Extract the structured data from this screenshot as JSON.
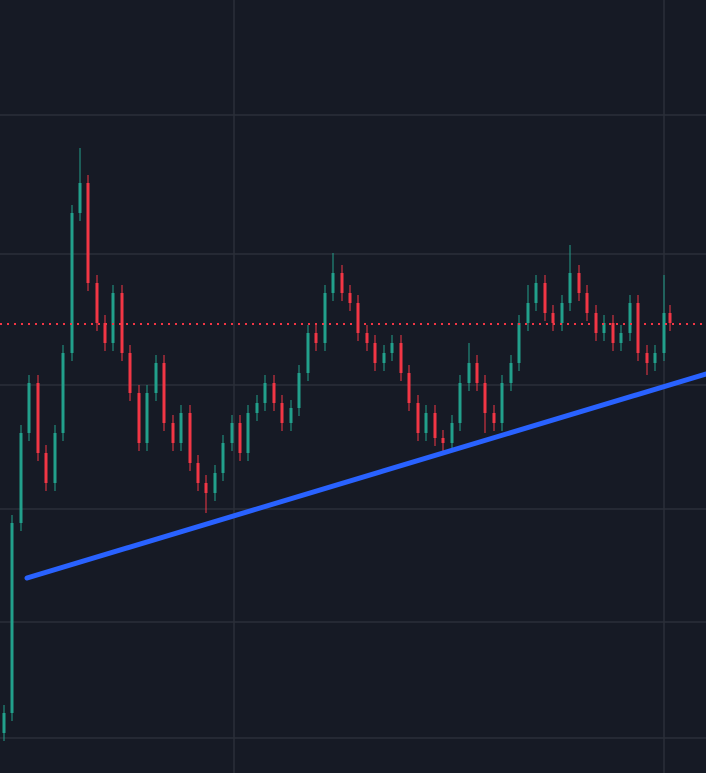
{
  "chart_data": {
    "type": "candlestick",
    "background": "#161a25",
    "grid": true,
    "grid_color": "#2a2e39",
    "up_color": "#22a08c",
    "down_color": "#f23645",
    "xlim": [
      0,
      706
    ],
    "ylim": [
      0,
      773
    ],
    "xticks": [
      234,
      664
    ],
    "yticks": [
      658,
      519,
      388,
      264,
      151,
      35
    ],
    "x": [
      4,
      12,
      21,
      29,
      38,
      46,
      55,
      63,
      72,
      80,
      88,
      97,
      105,
      113,
      122,
      130,
      139,
      147,
      156,
      164,
      173,
      181,
      190,
      198,
      206,
      215,
      223,
      232,
      240,
      248,
      257,
      265,
      274,
      282,
      291,
      299,
      308,
      316,
      325,
      333,
      342,
      350,
      358,
      367,
      375,
      384,
      392,
      401,
      409,
      418,
      426,
      435,
      443,
      452,
      460,
      469,
      477,
      485,
      494,
      502,
      511,
      519,
      528,
      536,
      545,
      553,
      562,
      570,
      579,
      587,
      596,
      604,
      613,
      621,
      630,
      638,
      647,
      655,
      664,
      670
    ],
    "open": [
      40,
      60,
      250,
      340,
      390,
      320,
      290,
      340,
      420,
      560,
      590,
      490,
      450,
      430,
      480,
      420,
      380,
      330,
      380,
      410,
      350,
      330,
      360,
      310,
      290,
      280,
      300,
      330,
      350,
      320,
      360,
      370,
      390,
      370,
      350,
      365,
      400,
      440,
      430,
      480,
      500,
      480,
      470,
      440,
      430,
      410,
      420,
      430,
      400,
      370,
      340,
      360,
      335,
      330,
      350,
      390,
      410,
      390,
      360,
      350,
      390,
      410,
      450,
      470,
      490,
      460,
      450,
      470,
      500,
      480,
      460,
      440,
      450,
      430,
      440,
      470,
      420,
      410,
      420,
      460
    ],
    "high": [
      68,
      258,
      348,
      398,
      398,
      328,
      348,
      428,
      568,
      625,
      598,
      498,
      458,
      488,
      488,
      428,
      388,
      388,
      418,
      418,
      358,
      368,
      368,
      318,
      298,
      308,
      338,
      358,
      358,
      368,
      378,
      398,
      398,
      378,
      373,
      408,
      448,
      448,
      488,
      520,
      508,
      488,
      478,
      448,
      438,
      428,
      438,
      438,
      408,
      378,
      368,
      368,
      343,
      358,
      398,
      430,
      418,
      398,
      368,
      398,
      418,
      458,
      488,
      498,
      498,
      468,
      478,
      528,
      508,
      488,
      468,
      458,
      458,
      448,
      478,
      478,
      428,
      428,
      498,
      468
    ],
    "low": [
      32,
      52,
      242,
      332,
      312,
      282,
      282,
      332,
      412,
      552,
      482,
      442,
      422,
      422,
      412,
      372,
      322,
      322,
      372,
      342,
      322,
      322,
      302,
      282,
      260,
      272,
      292,
      322,
      312,
      312,
      352,
      362,
      362,
      342,
      342,
      357,
      392,
      422,
      422,
      472,
      472,
      462,
      432,
      422,
      402,
      402,
      412,
      392,
      362,
      332,
      332,
      327,
      318,
      322,
      342,
      382,
      382,
      340,
      342,
      342,
      382,
      402,
      442,
      462,
      452,
      442,
      442,
      462,
      472,
      452,
      432,
      432,
      422,
      422,
      432,
      412,
      398,
      402,
      412,
      442
    ],
    "close": [
      60,
      250,
      340,
      390,
      320,
      290,
      340,
      420,
      560,
      590,
      490,
      450,
      430,
      480,
      420,
      380,
      330,
      380,
      410,
      350,
      330,
      360,
      310,
      290,
      280,
      300,
      330,
      350,
      320,
      360,
      370,
      390,
      370,
      350,
      365,
      400,
      440,
      430,
      480,
      500,
      480,
      470,
      440,
      430,
      410,
      420,
      430,
      400,
      370,
      340,
      360,
      335,
      330,
      350,
      390,
      410,
      390,
      360,
      350,
      390,
      410,
      450,
      470,
      490,
      460,
      450,
      470,
      500,
      480,
      460,
      440,
      450,
      430,
      440,
      470,
      420,
      410,
      420,
      460,
      450
    ],
    "price_line": {
      "value": 449,
      "color": "#f23645"
    },
    "trendline": {
      "x": [
        27,
        706
      ],
      "y": [
        195,
        399
      ],
      "color": "#2962ff"
    }
  }
}
